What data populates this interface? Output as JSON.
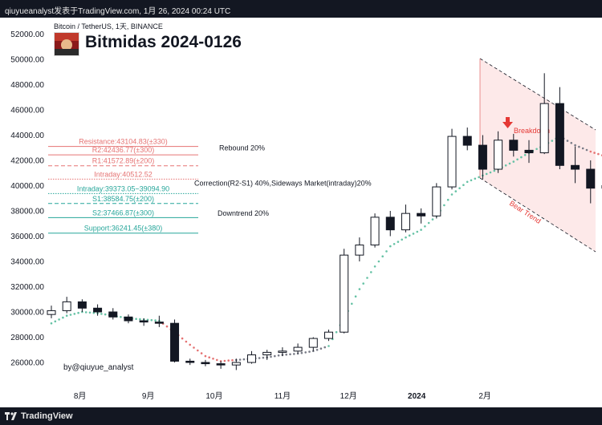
{
  "header": {
    "caption": "qiuyueanalyst发表于TradingView.com, 1月 26, 2024 00:24 UTC"
  },
  "symbol": {
    "line": "Bitcoin / TetherUS, 1天, BINANCE",
    "title": "Bitmidas 2024-0126"
  },
  "author_tag": "by@qiuyue_analyst",
  "footer": {
    "brand": "TradingView"
  },
  "colors": {
    "resistance": "#e57373",
    "support": "#26a69a",
    "channel_fill": "#fde4e4",
    "breakdown_arrow": "#e53935",
    "candle_body": "#131722",
    "trail_green": "#66c2a5",
    "trail_red": "#e57373",
    "trail_gray": "#787b86"
  },
  "chart_data": {
    "type": "candlestick",
    "title": "Bitmidas 2024-0126",
    "x_axis": {
      "ticks": [
        "8月",
        "9月",
        "10月",
        "11月",
        "12月",
        "2024",
        "2月"
      ]
    },
    "y_axis": {
      "ticks": [
        "26000.00",
        "28000.00",
        "30000.00",
        "32000.00",
        "34000.00",
        "36000.00",
        "38000.00",
        "40000.00",
        "42000.00",
        "44000.00",
        "46000.00",
        "48000.00",
        "50000.00",
        "52000.00"
      ],
      "ylim": [
        24500,
        52800
      ]
    },
    "series": [
      {
        "values": [
          [
            0,
            29800,
            30500,
            29500,
            30100
          ],
          [
            7,
            30100,
            31200,
            29900,
            30800
          ],
          [
            14,
            30800,
            31000,
            30000,
            30300
          ],
          [
            21,
            30300,
            30600,
            29700,
            30000
          ],
          [
            28,
            30000,
            30300,
            29400,
            29600
          ],
          [
            35,
            29600,
            29800,
            29100,
            29300
          ],
          [
            42,
            29300,
            29500,
            28900,
            29200
          ],
          [
            49,
            29200,
            29700,
            28800,
            29100
          ],
          [
            56,
            29100,
            29400,
            26000,
            26100
          ],
          [
            63,
            26100,
            26300,
            25800,
            26000
          ],
          [
            70,
            26000,
            26200,
            25700,
            25900
          ],
          [
            77,
            25900,
            26100,
            25500,
            25800
          ],
          [
            84,
            25800,
            26300,
            25400,
            26000
          ],
          [
            91,
            26000,
            26900,
            25900,
            26600
          ],
          [
            98,
            26600,
            27000,
            26200,
            26800
          ],
          [
            105,
            26800,
            27200,
            26500,
            26900
          ],
          [
            112,
            26900,
            27500,
            26700,
            27200
          ],
          [
            119,
            27200,
            28000,
            26900,
            27900
          ],
          [
            126,
            27900,
            28600,
            27700,
            28400
          ],
          [
            133,
            28400,
            35000,
            28300,
            34500
          ],
          [
            140,
            34500,
            35900,
            34000,
            35300
          ],
          [
            147,
            35300,
            37800,
            35100,
            37500
          ],
          [
            154,
            37500,
            38000,
            36000,
            36500
          ],
          [
            161,
            36500,
            38500,
            36300,
            37800
          ],
          [
            168,
            37800,
            38200,
            37000,
            37600
          ],
          [
            175,
            37600,
            40200,
            37400,
            39900
          ],
          [
            182,
            39900,
            44500,
            39700,
            43900
          ],
          [
            189,
            43900,
            44600,
            42800,
            43200
          ],
          [
            196,
            43200,
            44000,
            40500,
            41300
          ],
          [
            203,
            41300,
            44300,
            41000,
            43600
          ],
          [
            210,
            43600,
            44100,
            42300,
            42800
          ],
          [
            217,
            42800,
            43600,
            41800,
            42600
          ],
          [
            224,
            42600,
            48900,
            42500,
            46500
          ],
          [
            231,
            46500,
            47800,
            41300,
            41600
          ],
          [
            238,
            41600,
            43100,
            40200,
            41300
          ],
          [
            245,
            41300,
            42000,
            38600,
            39800
          ],
          [
            252,
            39800,
            40400,
            38700,
            40000
          ]
        ]
      },
      {
        "values": [
          [
            0,
            29100
          ],
          [
            7,
            29700
          ],
          [
            14,
            30000
          ],
          [
            21,
            29900
          ],
          [
            28,
            29700
          ],
          [
            35,
            29500
          ],
          [
            42,
            29400
          ],
          [
            49,
            29300
          ],
          [
            56,
            28400
          ],
          [
            63,
            27400
          ],
          [
            70,
            26500
          ],
          [
            77,
            26100
          ],
          [
            84,
            26200
          ],
          [
            91,
            26300
          ],
          [
            98,
            26400
          ],
          [
            105,
            26600
          ],
          [
            112,
            26700
          ],
          [
            119,
            26900
          ],
          [
            126,
            27300
          ],
          [
            133,
            29500
          ],
          [
            140,
            31800
          ],
          [
            147,
            33600
          ],
          [
            154,
            35200
          ],
          [
            161,
            35900
          ],
          [
            168,
            36500
          ],
          [
            175,
            37600
          ],
          [
            182,
            39300
          ],
          [
            189,
            40300
          ],
          [
            196,
            40800
          ],
          [
            203,
            41300
          ],
          [
            210,
            41900
          ],
          [
            217,
            42600
          ],
          [
            224,
            43200
          ],
          [
            231,
            43900
          ],
          [
            238,
            43200
          ],
          [
            245,
            42700
          ],
          [
            252,
            42300
          ]
        ]
      }
    ],
    "levels": [
      {
        "label": "Resistance:43104.83(±330)",
        "value": 43104.83,
        "style": "solid",
        "color": "#e57373"
      },
      {
        "label": "R2:42436.77(±300)",
        "value": 42436.77,
        "style": "solid",
        "color": "#e57373"
      },
      {
        "label": "R1:41572.89(±200)",
        "value": 41572.89,
        "style": "dashed",
        "color": "#e57373"
      },
      {
        "label": "Intraday:40512.52",
        "value": 40512.52,
        "style": "dotted",
        "color": "#e57373"
      },
      {
        "label": "Intraday:39373.05~39094.90",
        "value": 39373.05,
        "style": "dotted",
        "color": "#26a69a"
      },
      {
        "label": "S1:38584.75(±200)",
        "value": 38584.75,
        "style": "dashed",
        "color": "#26a69a"
      },
      {
        "label": "S2:37466.87(±300)",
        "value": 37466.87,
        "style": "solid",
        "color": "#26a69a"
      },
      {
        "label": "Support:36241.45(±380)",
        "value": 36241.45,
        "style": "solid",
        "color": "#26a69a"
      }
    ],
    "annotations": [
      {
        "text": "Rebound  20%",
        "value": 43000
      },
      {
        "text": "Correction(R2-S1) 40%,Sideways Market(intraday)20%",
        "value": 40200
      },
      {
        "text": "Downtrend  20%",
        "value": 37800
      },
      {
        "text": "Breakdown"
      },
      {
        "text": "Bear Trend"
      }
    ]
  }
}
